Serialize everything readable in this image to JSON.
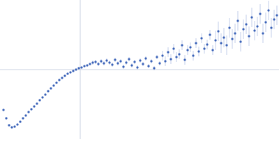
{
  "chart_data": {
    "type": "scatter",
    "xlim": [
      -1.15,
      2.85
    ],
    "ylim": [
      -1,
      1
    ],
    "color": "#3a62b8",
    "error_color": "#b3c1e4",
    "axis_color": "#c9d0e2",
    "x": [
      -1.1,
      -1.06,
      -1.02,
      -0.98,
      -0.94,
      -0.9,
      -0.86,
      -0.82,
      -0.78,
      -0.74,
      -0.7,
      -0.66,
      -0.62,
      -0.58,
      -0.54,
      -0.5,
      -0.46,
      -0.42,
      -0.38,
      -0.34,
      -0.3,
      -0.26,
      -0.22,
      -0.18,
      -0.14,
      -0.1,
      -0.06,
      -0.02,
      0.02,
      0.06,
      0.1,
      0.14,
      0.18,
      0.22,
      0.26,
      0.3,
      0.34,
      0.38,
      0.42,
      0.46,
      0.5,
      0.54,
      0.58,
      0.62,
      0.66,
      0.7,
      0.74,
      0.78,
      0.82,
      0.86,
      0.9,
      0.94,
      0.98,
      1.02,
      1.06,
      1.1,
      1.14,
      1.18,
      1.22,
      1.26,
      1.3,
      1.34,
      1.38,
      1.42,
      1.46,
      1.5,
      1.54,
      1.58,
      1.62,
      1.66,
      1.7,
      1.74,
      1.78,
      1.82,
      1.86,
      1.9,
      1.94,
      1.98,
      2.02,
      2.06,
      2.1,
      2.14,
      2.18,
      2.22,
      2.26,
      2.3,
      2.34,
      2.38,
      2.42,
      2.46,
      2.5,
      2.54,
      2.58,
      2.62,
      2.66,
      2.7,
      2.74,
      2.78,
      2.82
    ],
    "values": [
      -0.58,
      -0.7,
      -0.8,
      -0.83,
      -0.82,
      -0.79,
      -0.75,
      -0.7,
      -0.66,
      -0.61,
      -0.57,
      -0.53,
      -0.49,
      -0.44,
      -0.4,
      -0.36,
      -0.31,
      -0.27,
      -0.23,
      -0.19,
      -0.15,
      -0.12,
      -0.09,
      -0.06,
      -0.04,
      -0.02,
      0.0,
      0.02,
      0.03,
      0.05,
      0.06,
      0.08,
      0.1,
      0.11,
      0.08,
      0.12,
      0.09,
      0.13,
      0.1,
      0.07,
      0.14,
      0.09,
      0.12,
      0.04,
      0.1,
      0.15,
      0.06,
      0.11,
      0.03,
      0.13,
      0.08,
      0.16,
      0.05,
      0.12,
      0.02,
      0.18,
      0.09,
      0.2,
      0.12,
      0.25,
      0.15,
      0.3,
      0.18,
      0.22,
      0.35,
      0.14,
      0.28,
      0.32,
      0.2,
      0.38,
      0.26,
      0.45,
      0.3,
      0.36,
      0.5,
      0.28,
      0.42,
      0.55,
      0.38,
      0.46,
      0.35,
      0.6,
      0.44,
      0.52,
      0.7,
      0.4,
      0.58,
      0.65,
      0.48,
      0.75,
      0.56,
      0.62,
      0.8,
      0.52,
      0.68,
      0.85,
      0.6,
      0.72,
      0.78
    ],
    "errors": [
      0.01,
      0.01,
      0.01,
      0.01,
      0.01,
      0.01,
      0.01,
      0.01,
      0.01,
      0.01,
      0.01,
      0.01,
      0.01,
      0.01,
      0.01,
      0.01,
      0.01,
      0.01,
      0.01,
      0.01,
      0.01,
      0.01,
      0.01,
      0.01,
      0.01,
      0.01,
      0.01,
      0.01,
      0.01,
      0.01,
      0.01,
      0.01,
      0.03,
      0.03,
      0.03,
      0.03,
      0.03,
      0.03,
      0.03,
      0.03,
      0.03,
      0.03,
      0.03,
      0.03,
      0.03,
      0.03,
      0.03,
      0.03,
      0.03,
      0.03,
      0.03,
      0.03,
      0.03,
      0.03,
      0.03,
      0.03,
      0.03,
      0.07,
      0.07,
      0.07,
      0.07,
      0.07,
      0.07,
      0.07,
      0.07,
      0.07,
      0.07,
      0.07,
      0.07,
      0.07,
      0.07,
      0.07,
      0.07,
      0.07,
      0.07,
      0.07,
      0.14,
      0.14,
      0.14,
      0.14,
      0.14,
      0.14,
      0.14,
      0.14,
      0.14,
      0.14,
      0.14,
      0.14,
      0.14,
      0.14,
      0.14,
      0.14,
      0.14,
      0.14,
      0.14,
      0.14,
      0.14,
      0.14,
      0.14
    ]
  }
}
